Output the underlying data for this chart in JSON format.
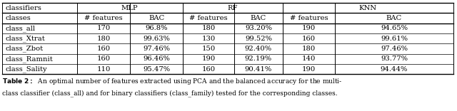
{
  "header_row1": [
    "classifiers",
    "MLP",
    "MLP",
    "RF",
    "RF",
    "KNN",
    "KNN"
  ],
  "header_row2": [
    "classes",
    "# features",
    "BAC",
    "# features",
    "BAC",
    "# features",
    "BAC"
  ],
  "rows": [
    [
      "class_all",
      "170",
      "96.8%",
      "180",
      "93.20%",
      "190",
      "94.65%"
    ],
    [
      "class_Xtrat",
      "180",
      "99.63%",
      "130",
      "99.52%",
      "160",
      "99.61%"
    ],
    [
      "class_Zbot",
      "160",
      "97.46%",
      "150",
      "92.40%",
      "180",
      "97.46%"
    ],
    [
      "class_Ramnit",
      "160",
      "96.46%",
      "190",
      "92.19%",
      "140",
      "93.77%"
    ],
    [
      "class_Sality",
      "110",
      "95.47%",
      "160",
      "90.41%",
      "190",
      "94.44%"
    ]
  ],
  "vlines_x": [
    0.005,
    0.168,
    0.285,
    0.4,
    0.513,
    0.618,
    0.733,
    0.992
  ],
  "background_color": "#ffffff",
  "fs": 7.2,
  "caption_fs": 6.5
}
